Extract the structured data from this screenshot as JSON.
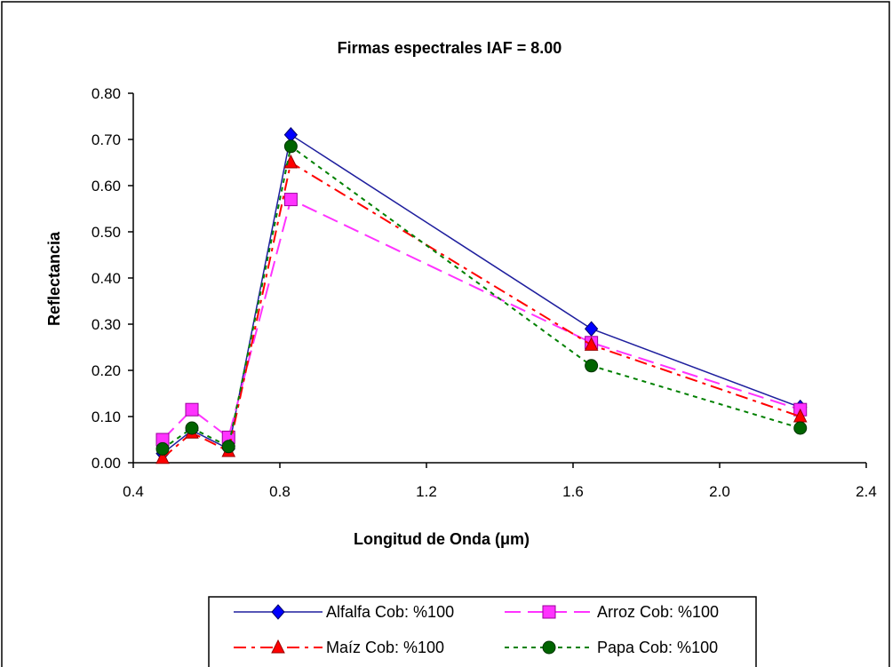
{
  "chart_data": {
    "type": "line",
    "title": "Firmas espectrales IAF = 8.00",
    "xlabel": "Longitud de Onda (μm)",
    "ylabel": "Reflectancia",
    "xlim": [
      0.4,
      2.4
    ],
    "ylim": [
      0.0,
      0.8
    ],
    "x_ticks": [
      "0.4",
      "0.8",
      "1.2",
      "1.6",
      "2.0",
      "2.4"
    ],
    "y_ticks": [
      "0.00",
      "0.10",
      "0.20",
      "0.30",
      "0.40",
      "0.50",
      "0.60",
      "0.70",
      "0.80"
    ],
    "grid": false,
    "legend_position": "bottom",
    "x": [
      0.48,
      0.56,
      0.66,
      0.83,
      1.65,
      2.22
    ],
    "series": [
      {
        "name": "Alfalfa Cob: %100",
        "values": [
          0.02,
          0.07,
          0.03,
          0.71,
          0.29,
          0.12
        ],
        "color": "#1f1f9e",
        "marker_color": "#0000ff",
        "marker": "diamond",
        "dash": "solid"
      },
      {
        "name": "Arroz Cob: %100",
        "values": [
          0.05,
          0.115,
          0.055,
          0.57,
          0.26,
          0.115
        ],
        "color": "#ff33ff",
        "marker_color": "#ff33ff",
        "marker": "square",
        "dash": "dashed"
      },
      {
        "name": "Maíz Cob: %100",
        "values": [
          0.01,
          0.065,
          0.025,
          0.65,
          0.255,
          0.1
        ],
        "color": "#ff0000",
        "marker_color": "#ff0000",
        "marker": "triangle",
        "dash": "dashdot"
      },
      {
        "name": "Papa Cob: %100",
        "values": [
          0.03,
          0.075,
          0.035,
          0.685,
          0.21,
          0.075
        ],
        "color": "#008000",
        "marker_color": "#006400",
        "marker": "circle",
        "dash": "dotted"
      }
    ]
  }
}
